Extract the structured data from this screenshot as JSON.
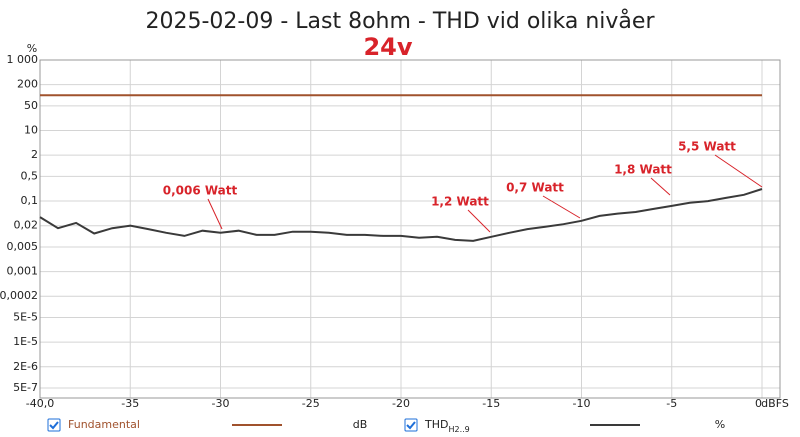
{
  "chart_data": {
    "type": "line",
    "title": "2025-02-09 - Last 8ohm - THD vid olika nivåer",
    "subtitle": "24v",
    "y_label": "%",
    "x_label": "dBFS",
    "log_y": true,
    "grid": true,
    "xlim": [
      -40,
      0
    ],
    "xticks": [
      {
        "value": -40,
        "label": "-40,0"
      },
      -35,
      -30,
      -25,
      -20,
      -15,
      -10,
      -5,
      0
    ],
    "ylim": [
      5e-07,
      1000
    ],
    "yticks": [
      {
        "value": 1000,
        "label": "1 000"
      },
      200,
      50,
      10,
      2,
      {
        "value": 0.5,
        "label": "0,5"
      },
      {
        "value": 0.1,
        "label": "0,1"
      },
      {
        "value": 0.02,
        "label": "0,02"
      },
      {
        "value": 0.005,
        "label": "0,005"
      },
      {
        "value": 0.001,
        "label": "0,001"
      },
      {
        "value": 0.0002,
        "label": "0,0002"
      },
      {
        "value": 5e-05,
        "label": "5E-5"
      },
      {
        "value": 1e-05,
        "label": "1E-5"
      },
      {
        "value": 2e-06,
        "label": "2E-6"
      },
      {
        "value": 5e-07,
        "label": "5E-7"
      }
    ],
    "series": [
      {
        "name": "Fundamental",
        "unit": "dB",
        "color": "#a0522d",
        "x": [
          -40,
          0
        ],
        "values": [
          100,
          100
        ]
      },
      {
        "name": "THD",
        "name_sub": "H2..9",
        "unit": "%",
        "color": "#3a3a3a",
        "x": [
          -40,
          -39,
          -38,
          -37,
          -36,
          -35,
          -34,
          -33,
          -32,
          -31,
          -30,
          -29,
          -28,
          -27,
          -26,
          -25,
          -24,
          -23,
          -22,
          -21,
          -20,
          -19,
          -18,
          -17,
          -16,
          -15,
          -14,
          -13,
          -12,
          -11,
          -10,
          -9,
          -8,
          -7,
          -6,
          -5,
          -4,
          -3,
          -2,
          -1,
          0
        ],
        "values": [
          0.035,
          0.017,
          0.024,
          0.012,
          0.017,
          0.02,
          0.016,
          0.0126,
          0.0103,
          0.0144,
          0.0126,
          0.0144,
          0.011,
          0.011,
          0.0135,
          0.0135,
          0.0126,
          0.011,
          0.011,
          0.0103,
          0.0103,
          0.0091,
          0.0097,
          0.0079,
          0.0074,
          0.0097,
          0.0126,
          0.016,
          0.0186,
          0.022,
          0.0275,
          0.038,
          0.044,
          0.049,
          0.06,
          0.073,
          0.089,
          0.1,
          0.123,
          0.15,
          0.22
        ]
      }
    ],
    "annotations": [
      "0,006 Watt",
      "1,2 Watt",
      "0,7 Watt",
      "1,8 Watt",
      "5,5 Watt"
    ]
  }
}
